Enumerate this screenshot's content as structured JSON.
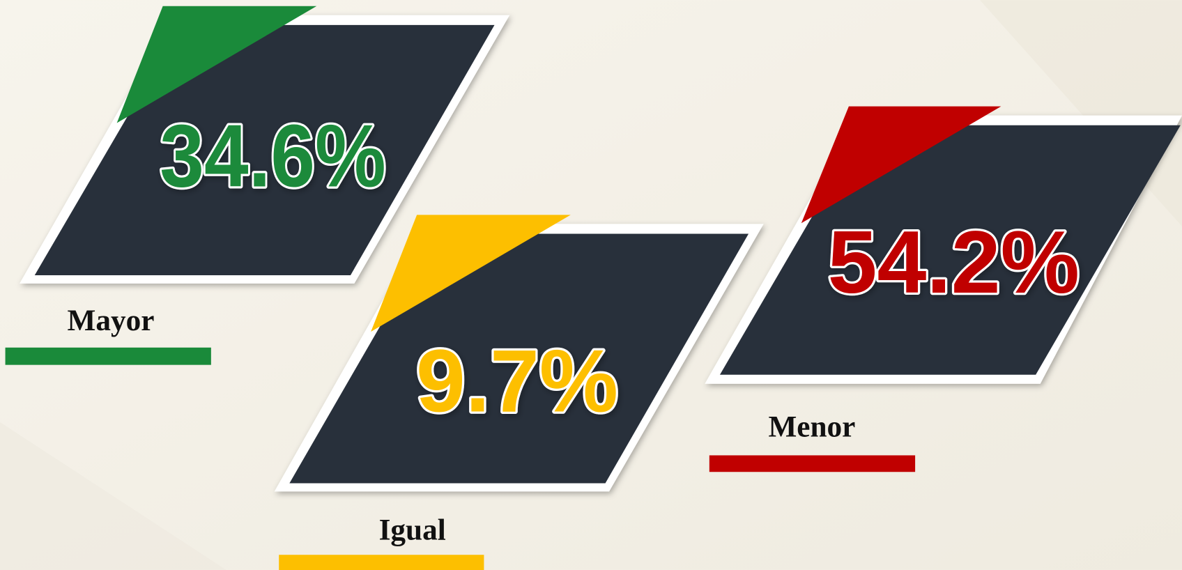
{
  "cards": [
    {
      "value": "34.6%",
      "label": "Mayor",
      "color": "#1a8a3a"
    },
    {
      "value": "9.7%",
      "label": "Igual",
      "color": "#fdbf00"
    },
    {
      "value": "54.2%",
      "label": "Menor",
      "color": "#c00000"
    }
  ]
}
